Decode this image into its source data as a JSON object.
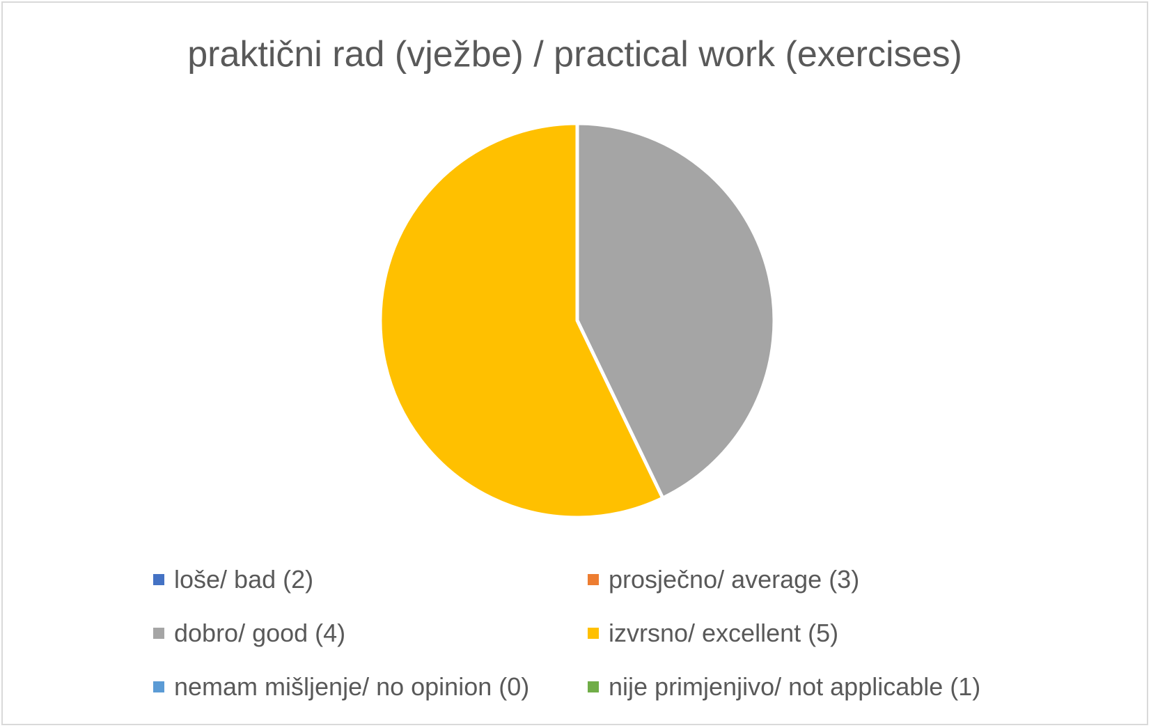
{
  "chart_data": {
    "type": "pie",
    "title": "praktični rad (vježbe) / practical work (exercises)",
    "categories": [
      "loše/ bad (2)",
      "prosječno/ average (3)",
      "dobro/ good (4)",
      "izvrsno/ excellent (5)",
      "nemam mišljenje/ no opinion (0)",
      "nije primjenjivo/ not applicable (1)"
    ],
    "values": [
      0,
      0,
      3,
      4,
      0,
      0
    ],
    "colors": [
      "#4472c4",
      "#ed7d31",
      "#a5a5a5",
      "#ffc000",
      "#5b9bd5",
      "#70ad47"
    ],
    "legend_position": "bottom",
    "start_angle": "12 o'clock",
    "direction": "clockwise"
  }
}
